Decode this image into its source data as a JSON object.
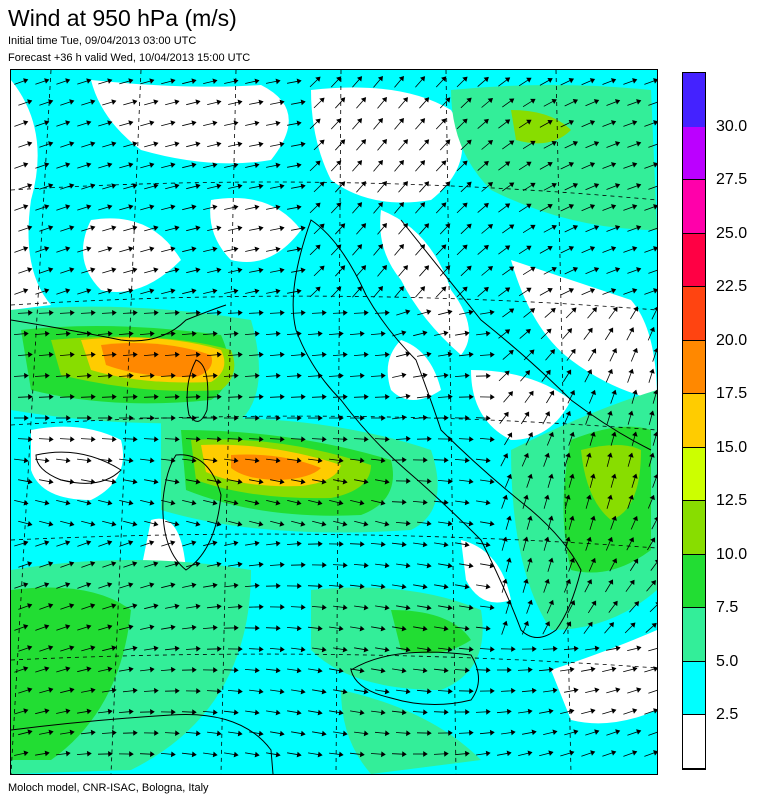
{
  "header": {
    "title": "Wind at 950 hPa (m/s)",
    "initial_time": "Initial time  Tue, 09/04/2013 03:00 UTC",
    "forecast": "Forecast +36 h valid  Wed, 10/04/2013 15:00 UTC"
  },
  "footer": {
    "credit": "Moloch model, CNR-ISAC, Bologna, Italy"
  },
  "legend": {
    "levels": [
      "2.5",
      "5.0",
      "7.5",
      "10.0",
      "12.5",
      "15.0",
      "17.5",
      "20.0",
      "22.5",
      "25.0",
      "27.5",
      "30.0"
    ],
    "colors": [
      "#ffffff",
      "#00ffff",
      "#33ee99",
      "#22dd33",
      "#88dd00",
      "#ccff00",
      "#ffcc00",
      "#ff8800",
      "#ff4411",
      "#ff0044",
      "#ff00aa",
      "#bb00ff",
      "#4422ff"
    ]
  },
  "map": {
    "background_color": "#ffffff",
    "land_outline_color": "#000000",
    "grid_line_style": "dashed"
  }
}
